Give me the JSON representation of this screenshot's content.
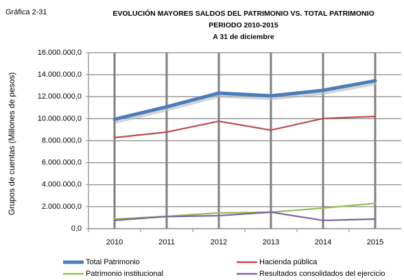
{
  "label": "Gráfica 2-31",
  "chart_data": {
    "type": "line",
    "title": [
      "EVOLUCIÓN MAYORES SALDOS DEL PATRIMONIO VS. TOTAL PATRIMONIO",
      "PERIODO 2010-2015",
      "A 31 de diciembre"
    ],
    "y_label": "Grupos de cuentas (Millones de pesos)",
    "categories": [
      "2010",
      "2011",
      "2012",
      "2013",
      "2014",
      "2015"
    ],
    "series": [
      {
        "name": "Total Patrimonio",
        "color": "#4a7ebb",
        "values": [
          9950000,
          11080000,
          12330000,
          12080000,
          12580000,
          13450000
        ]
      },
      {
        "name": "Hacienda pública",
        "color": "#be4b48",
        "values": [
          8280000,
          8780000,
          9770000,
          8960000,
          10020000,
          10210000
        ]
      },
      {
        "name": "Patrimonio institucional",
        "color": "#98b954",
        "values": [
          870000,
          1120000,
          1430000,
          1500000,
          1870000,
          2300000
        ]
      },
      {
        "name": "Resultados consolidados del ejercicio",
        "color": "#7d60a0",
        "values": [
          750000,
          1100000,
          1180000,
          1500000,
          750000,
          870000
        ]
      }
    ],
    "ylim": [
      0,
      16000000
    ],
    "yticks": [
      {
        "value": 0,
        "label": "0,0"
      },
      {
        "value": 2000000,
        "label": "2.000.000,0"
      },
      {
        "value": 4000000,
        "label": "4.000.000,0"
      },
      {
        "value": 6000000,
        "label": "6.000.000,0"
      },
      {
        "value": 8000000,
        "label": "8.000.000,0"
      },
      {
        "value": 10000000,
        "label": "10.000.000,0"
      },
      {
        "value": 12000000,
        "label": "12.000.000,0"
      },
      {
        "value": 14000000,
        "label": "14.000.000,0"
      },
      {
        "value": 16000000,
        "label": "16.000.000,0"
      }
    ],
    "grid": true,
    "legend": "bottom"
  }
}
